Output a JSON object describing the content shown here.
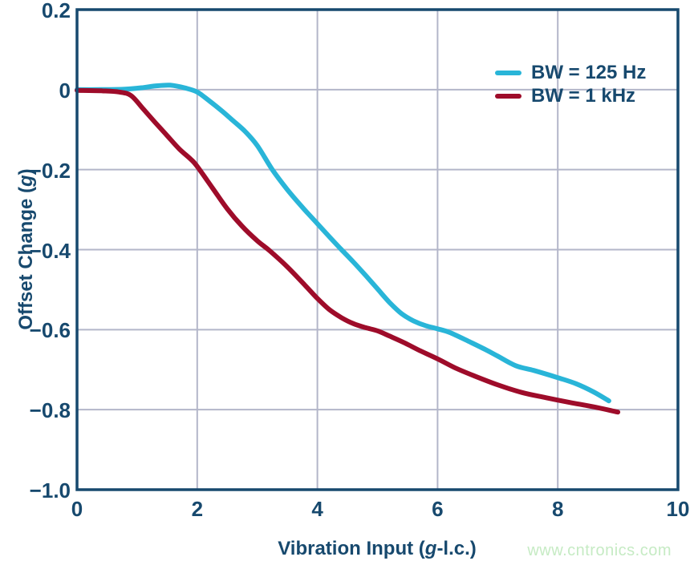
{
  "colors": {
    "axis_and_text": "#17496e",
    "gridline": "#b3b6c9",
    "background": "#ffffff",
    "watermark": "#c6ebc4",
    "series_bw125": "#29b5d8",
    "series_bw1k": "#9e0c2a"
  },
  "watermark": {
    "text": "www.cntronics.com"
  },
  "chart_data": {
    "type": "line",
    "title": "",
    "xlabel": "Vibration Input (g-l.c.)",
    "xlabel_parts": {
      "prefix": "Vibration Input (",
      "italic": "g",
      "suffix": "-l.c.)"
    },
    "ylabel": "Offset Change (g)",
    "ylabel_parts": {
      "prefix": "Offset Change (",
      "italic": "g",
      "suffix": ")"
    },
    "xlim": [
      0,
      10
    ],
    "ylim": [
      -1.0,
      0.2
    ],
    "grid": true,
    "legend_position": "top-right",
    "x_ticks": {
      "values": [
        0,
        2,
        4,
        6,
        8,
        10
      ],
      "labels": [
        "0",
        "2",
        "4",
        "6",
        "8",
        "10"
      ]
    },
    "y_ticks": {
      "values": [
        0.2,
        0,
        -0.2,
        -0.4,
        -0.6,
        -0.8,
        -1.0
      ],
      "labels": [
        "0.2",
        "0",
        "−0.2",
        "−0.4",
        "−0.6",
        "−0.8",
        "−1.0"
      ]
    },
    "series": [
      {
        "name": "BW = 125 Hz",
        "color": "#29b5d8",
        "points": [
          [
            0,
            0.0
          ],
          [
            0.4,
            0.0
          ],
          [
            0.8,
            0.001
          ],
          [
            1.1,
            0.005
          ],
          [
            1.3,
            0.009
          ],
          [
            1.55,
            0.011
          ],
          [
            1.8,
            0.004
          ],
          [
            2.0,
            -0.006
          ],
          [
            2.2,
            -0.028
          ],
          [
            2.4,
            -0.052
          ],
          [
            2.6,
            -0.078
          ],
          [
            2.8,
            -0.105
          ],
          [
            3.0,
            -0.14
          ],
          [
            3.25,
            -0.2
          ],
          [
            3.5,
            -0.25
          ],
          [
            3.75,
            -0.294
          ],
          [
            4.0,
            -0.335
          ],
          [
            4.2,
            -0.368
          ],
          [
            4.4,
            -0.4
          ],
          [
            4.6,
            -0.431
          ],
          [
            4.8,
            -0.464
          ],
          [
            5.0,
            -0.498
          ],
          [
            5.2,
            -0.532
          ],
          [
            5.4,
            -0.56
          ],
          [
            5.6,
            -0.578
          ],
          [
            5.8,
            -0.59
          ],
          [
            6.0,
            -0.598
          ],
          [
            6.2,
            -0.607
          ],
          [
            6.5,
            -0.628
          ],
          [
            6.8,
            -0.65
          ],
          [
            7.0,
            -0.666
          ],
          [
            7.3,
            -0.69
          ],
          [
            7.6,
            -0.702
          ],
          [
            8.0,
            -0.72
          ],
          [
            8.3,
            -0.735
          ],
          [
            8.6,
            -0.756
          ],
          [
            8.85,
            -0.778
          ]
        ]
      },
      {
        "name": "BW = 1 kHz",
        "color": "#9e0c2a",
        "points": [
          [
            0,
            -0.002
          ],
          [
            0.4,
            -0.003
          ],
          [
            0.7,
            -0.006
          ],
          [
            0.9,
            -0.015
          ],
          [
            1.1,
            -0.048
          ],
          [
            1.3,
            -0.082
          ],
          [
            1.5,
            -0.115
          ],
          [
            1.7,
            -0.148
          ],
          [
            1.9,
            -0.175
          ],
          [
            2.0,
            -0.192
          ],
          [
            2.25,
            -0.245
          ],
          [
            2.5,
            -0.298
          ],
          [
            2.75,
            -0.342
          ],
          [
            3.0,
            -0.378
          ],
          [
            3.2,
            -0.402
          ],
          [
            3.5,
            -0.443
          ],
          [
            3.8,
            -0.49
          ],
          [
            4.0,
            -0.522
          ],
          [
            4.2,
            -0.55
          ],
          [
            4.4,
            -0.57
          ],
          [
            4.6,
            -0.585
          ],
          [
            4.8,
            -0.595
          ],
          [
            5.0,
            -0.603
          ],
          [
            5.2,
            -0.616
          ],
          [
            5.45,
            -0.633
          ],
          [
            5.7,
            -0.652
          ],
          [
            6.0,
            -0.673
          ],
          [
            6.3,
            -0.696
          ],
          [
            6.6,
            -0.715
          ],
          [
            7.0,
            -0.738
          ],
          [
            7.4,
            -0.757
          ],
          [
            7.8,
            -0.77
          ],
          [
            8.2,
            -0.782
          ],
          [
            8.6,
            -0.793
          ],
          [
            9.0,
            -0.806
          ]
        ]
      }
    ]
  }
}
